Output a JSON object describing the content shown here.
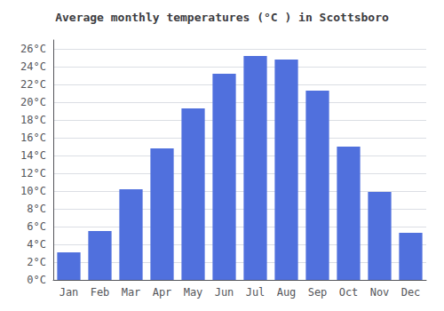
{
  "chart_data": {
    "type": "bar",
    "title": "Average monthly temperatures (°C ) in Scottsboro",
    "categories": [
      "Jan",
      "Feb",
      "Mar",
      "Apr",
      "May",
      "Jun",
      "Jul",
      "Aug",
      "Sep",
      "Oct",
      "Nov",
      "Dec"
    ],
    "values": [
      3.1,
      5.5,
      10.2,
      14.8,
      19.3,
      23.2,
      25.2,
      24.8,
      21.3,
      15.0,
      9.9,
      5.3
    ],
    "ylim": [
      0,
      27
    ],
    "yticks": [
      {
        "value": 0,
        "label": "0°C"
      },
      {
        "value": 2,
        "label": "2°C"
      },
      {
        "value": 4,
        "label": "4°C"
      },
      {
        "value": 6,
        "label": "6°C"
      },
      {
        "value": 8,
        "label": "8°C"
      },
      {
        "value": 10,
        "label": "10°C"
      },
      {
        "value": 12,
        "label": "12°C"
      },
      {
        "value": 14,
        "label": "14°C"
      },
      {
        "value": 16,
        "label": "16°C"
      },
      {
        "value": 18,
        "label": "18°C"
      },
      {
        "value": 20,
        "label": "20°C"
      },
      {
        "value": 22,
        "label": "22°C"
      },
      {
        "value": 24,
        "label": "24°C"
      },
      {
        "value": 26,
        "label": "26°C"
      }
    ],
    "grid": true
  }
}
